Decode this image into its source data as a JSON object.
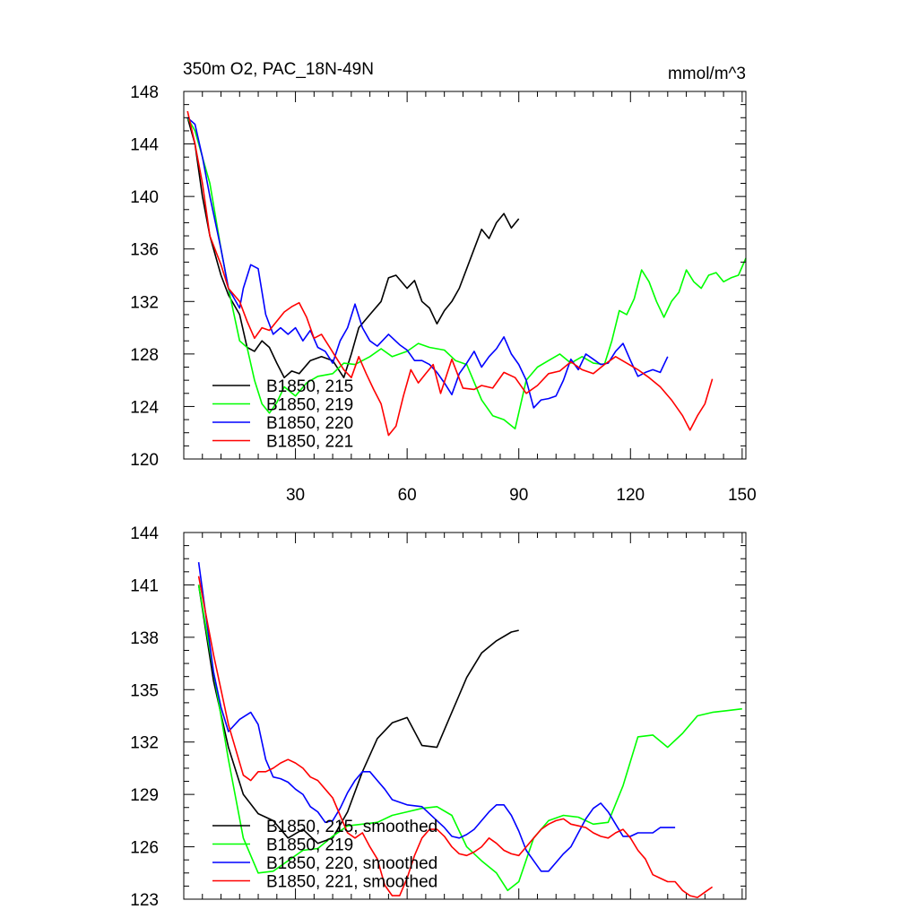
{
  "chart_data": [
    {
      "type": "line",
      "title": "350m O2, PAC_18N-49N",
      "units": "mmol/m^3",
      "xlim": [
        0,
        151
      ],
      "ylim": [
        120,
        148
      ],
      "x_ticks": [
        30,
        60,
        90,
        120,
        150
      ],
      "x_tick_labels": [
        "30",
        "60",
        "90",
        "120",
        "150"
      ],
      "y_ticks": [
        120,
        124,
        128,
        132,
        136,
        140,
        144,
        148
      ],
      "y_tick_labels": [
        "120",
        "124",
        "128",
        "132",
        "136",
        "140",
        "144",
        "148"
      ],
      "legend_position": "bottom-left",
      "series": [
        {
          "name": "B1850, 215",
          "color": "#000000",
          "x": [
            1,
            3,
            5,
            7,
            10,
            12,
            15,
            17,
            19,
            21,
            23,
            25,
            27,
            29,
            31,
            34,
            37,
            40,
            43,
            45,
            47,
            50,
            53,
            55,
            57,
            60,
            62,
            64,
            66,
            68,
            70,
            72,
            74,
            76,
            78,
            80,
            82,
            84,
            86,
            88,
            90
          ],
          "y": [
            146,
            144,
            140,
            137,
            134,
            132.5,
            131,
            128.5,
            128.2,
            129,
            128.5,
            127.3,
            126.2,
            126.7,
            126.5,
            127.5,
            127.8,
            127.5,
            126.2,
            128,
            130,
            131,
            132,
            133.8,
            134,
            133,
            133.6,
            132,
            131.5,
            130.3,
            131.3,
            132,
            133,
            134.5,
            136,
            137.5,
            136.8,
            138,
            138.7,
            137.6,
            138.3
          ]
        },
        {
          "name": "B1850, 219",
          "color": "#00ff00",
          "x": [
            1,
            3,
            5,
            7,
            10,
            12,
            15,
            17,
            19,
            21,
            23,
            25,
            27,
            30,
            33,
            36,
            40,
            43,
            46,
            50,
            53,
            56,
            60,
            63,
            66,
            70,
            73,
            76,
            80,
            83,
            86,
            89,
            92,
            95,
            98,
            101,
            104,
            107,
            110,
            113,
            115,
            117,
            119,
            121,
            123,
            125,
            127,
            129,
            131,
            133,
            135,
            137,
            139,
            141,
            143,
            145,
            147,
            149,
            151
          ],
          "y": [
            146,
            145,
            143,
            141,
            136,
            133,
            129,
            128.5,
            126,
            124.2,
            123.5,
            124.3,
            125.5,
            124.8,
            125.8,
            126.3,
            126.5,
            127.3,
            127.2,
            127.8,
            128.4,
            127.8,
            128.2,
            128.8,
            128.5,
            128.3,
            127.5,
            127.2,
            124.5,
            123.3,
            123,
            122.3,
            126,
            127,
            127.5,
            128,
            127.3,
            127.8,
            127.3,
            127.2,
            129,
            131.3,
            131,
            132.2,
            134.4,
            133.5,
            132,
            130.8,
            132,
            132.7,
            134.4,
            133.5,
            133,
            134,
            134.2,
            133.5,
            133.8,
            134,
            135.3
          ]
        },
        {
          "name": "B1850, 220",
          "color": "#0000ff",
          "x": [
            1,
            3,
            5,
            7,
            10,
            12,
            15,
            16,
            18,
            20,
            22,
            24,
            26,
            28,
            30,
            32,
            34,
            36,
            38,
            40,
            42,
            44,
            46,
            48,
            50,
            52,
            55,
            58,
            60,
            62,
            64,
            66,
            68,
            70,
            72,
            74,
            76,
            78,
            80,
            82,
            84,
            86,
            88,
            90,
            92,
            94,
            96,
            98,
            100,
            102,
            104,
            106,
            108,
            110,
            112,
            114,
            116,
            118,
            120,
            122,
            124,
            126,
            128,
            130
          ],
          "y": [
            146,
            145.5,
            143,
            140,
            136,
            133,
            131.5,
            133,
            134.8,
            134.5,
            131,
            129.5,
            130,
            129.5,
            130,
            129,
            129.8,
            128.5,
            128.2,
            127.3,
            129,
            130,
            131.8,
            130,
            129,
            128.6,
            129.5,
            128.7,
            128.3,
            127.5,
            127.5,
            127.2,
            126.6,
            125.8,
            124.9,
            126.5,
            127.3,
            128.2,
            127,
            127.8,
            128.4,
            129.3,
            128,
            127.2,
            126,
            123.9,
            124.5,
            124.6,
            124.8,
            126,
            127.6,
            126.8,
            128,
            127.6,
            127.2,
            127.3,
            128.2,
            128.8,
            127.5,
            126.3,
            126.6,
            126.8,
            126.6,
            127.8
          ]
        },
        {
          "name": "B1850, 221",
          "color": "#ff0000",
          "x": [
            1,
            3,
            5,
            7,
            10,
            12,
            15,
            17,
            19,
            21,
            23,
            25,
            27,
            29,
            31,
            33,
            35,
            37,
            39,
            41,
            43,
            45,
            47,
            49,
            51,
            53,
            55,
            57,
            59,
            61,
            63,
            65,
            67,
            69,
            72,
            75,
            78,
            80,
            83,
            86,
            89,
            92,
            95,
            98,
            101,
            104,
            107,
            110,
            113,
            116,
            119,
            122,
            125,
            128,
            131,
            134,
            136,
            138,
            140,
            142
          ],
          "y": [
            146.5,
            144,
            141,
            137,
            134.8,
            133,
            132,
            130.5,
            129.2,
            130,
            129.8,
            130.5,
            131.2,
            131.6,
            131.9,
            130.8,
            129.2,
            129.5,
            128.6,
            127.7,
            126.8,
            126.2,
            127.8,
            126.5,
            125.3,
            124.2,
            121.8,
            122.5,
            124.8,
            126.8,
            125.8,
            126.5,
            127.2,
            125,
            127.6,
            125.4,
            125.3,
            125.6,
            125.4,
            126.6,
            126.2,
            125,
            125.6,
            126.5,
            126.7,
            127.4,
            126.8,
            126.5,
            127.2,
            127.8,
            127.3,
            126.8,
            126.2,
            125.5,
            124.5,
            123.3,
            122.2,
            123.3,
            124.2,
            126.1
          ]
        }
      ]
    },
    {
      "type": "line",
      "xlim": [
        0,
        151
      ],
      "ylim": [
        123,
        144
      ],
      "y_ticks": [
        123,
        126,
        129,
        132,
        135,
        138,
        141,
        144
      ],
      "y_tick_labels": [
        "123",
        "126",
        "129",
        "132",
        "135",
        "138",
        "141",
        "144"
      ],
      "x_ticks": [
        30,
        60,
        90,
        120,
        150
      ],
      "legend_position": "bottom-left",
      "series": [
        {
          "name": "B1850, 215, smoothed",
          "color": "#000000",
          "x": [
            4,
            8,
            12,
            16,
            20,
            24,
            28,
            32,
            36,
            40,
            44,
            48,
            52,
            56,
            60,
            64,
            68,
            72,
            76,
            80,
            84,
            88,
            90
          ],
          "y": [
            141,
            135.5,
            131.7,
            129,
            127.9,
            127.5,
            126.5,
            127,
            126.2,
            126.5,
            128,
            130.3,
            132.2,
            133.1,
            133.4,
            131.8,
            131.7,
            133.7,
            135.7,
            137.1,
            137.8,
            138.3,
            138.4
          ]
        },
        {
          "name": "B1850, 219",
          "color": "#00ff00",
          "x": [
            4,
            8,
            12,
            16,
            20,
            24,
            28,
            32,
            36,
            40,
            44,
            48,
            52,
            56,
            60,
            64,
            68,
            72,
            76,
            80,
            84,
            87,
            90,
            94,
            98,
            102,
            106,
            110,
            114,
            118,
            122,
            126,
            130,
            134,
            138,
            142,
            146,
            150
          ],
          "y": [
            141,
            136,
            131,
            126.5,
            124.5,
            124.6,
            125.2,
            125.8,
            125.9,
            126.6,
            127.2,
            127.3,
            127.4,
            127.8,
            128,
            128.2,
            128.3,
            127.8,
            126,
            125.2,
            124.5,
            123.5,
            124,
            126.5,
            127.5,
            127.8,
            127.7,
            127.3,
            127.4,
            129.5,
            132.3,
            132.4,
            131.7,
            132.5,
            133.5,
            133.7,
            133.8,
            133.9
          ]
        },
        {
          "name": "B1850, 220, smoothed",
          "color": "#0000ff",
          "x": [
            4,
            8,
            10,
            12,
            15,
            18,
            20,
            22,
            24,
            26,
            28,
            30,
            32,
            34,
            36,
            38,
            40,
            42,
            44,
            46,
            48,
            50,
            52,
            54,
            56,
            60,
            64,
            68,
            70,
            72,
            74,
            76,
            78,
            80,
            82,
            84,
            86,
            88,
            90,
            92,
            94,
            96,
            98,
            100,
            102,
            104,
            106,
            108,
            110,
            112,
            114,
            116,
            118,
            120,
            122,
            124,
            126,
            128,
            130,
            132
          ],
          "y": [
            142.3,
            136,
            134,
            132.6,
            133.3,
            133.7,
            133,
            131,
            130,
            129.9,
            129.7,
            129.3,
            129,
            128.3,
            128,
            127.4,
            127.5,
            128.2,
            129.1,
            129.8,
            130.3,
            130.3,
            129.8,
            129.3,
            128.7,
            128.4,
            128.3,
            127.5,
            127.1,
            126.6,
            126.5,
            126.7,
            127,
            127.5,
            128,
            128.4,
            128.4,
            127.8,
            126.9,
            125.8,
            125.2,
            124.6,
            124.6,
            125.1,
            125.6,
            126,
            126.8,
            127.6,
            128.2,
            128.5,
            128,
            127.3,
            126.6,
            126.6,
            126.8,
            126.8,
            126.8,
            127.1,
            127.1,
            127.1
          ]
        },
        {
          "name": "B1850, 221, smoothed",
          "color": "#ff0000",
          "x": [
            4,
            8,
            12,
            16,
            18,
            20,
            22,
            24,
            26,
            28,
            30,
            32,
            34,
            36,
            38,
            40,
            42,
            44,
            46,
            48,
            50,
            52,
            54,
            56,
            58,
            60,
            62,
            64,
            66,
            68,
            70,
            72,
            74,
            76,
            78,
            80,
            82,
            84,
            86,
            88,
            90,
            92,
            94,
            96,
            98,
            100,
            102,
            104,
            106,
            108,
            110,
            112,
            114,
            116,
            118,
            120,
            122,
            124,
            126,
            128,
            130,
            132,
            134,
            136,
            138,
            140,
            142
          ],
          "y": [
            141.5,
            137,
            133,
            130.1,
            129.8,
            130.3,
            130.3,
            130.5,
            130.8,
            131,
            130.8,
            130.5,
            130,
            129.8,
            129.3,
            128.8,
            127.8,
            126.8,
            126.5,
            126.8,
            126,
            125.3,
            123.8,
            123.2,
            123.2,
            124.2,
            125.5,
            126.5,
            127,
            127,
            126.6,
            126,
            125.6,
            125.5,
            125.7,
            126,
            126.5,
            126.2,
            125.8,
            125.6,
            125.5,
            126,
            126.5,
            127,
            127.3,
            127.5,
            127.6,
            127.3,
            127.2,
            127.1,
            126.8,
            126.6,
            126.5,
            126.8,
            127,
            126.5,
            125.8,
            125.3,
            124.4,
            124.2,
            124,
            124,
            123.5,
            123.2,
            123.1,
            123.4,
            123.7
          ]
        }
      ]
    }
  ]
}
